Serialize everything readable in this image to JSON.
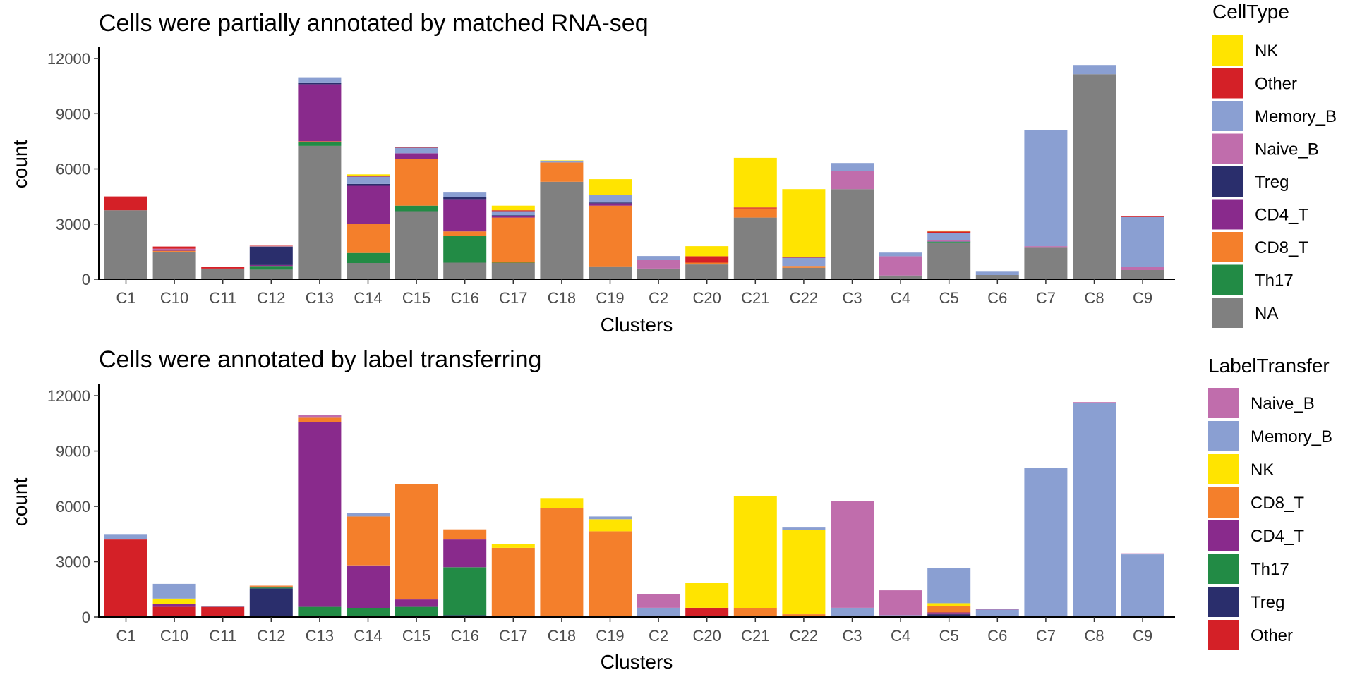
{
  "chart_data": [
    {
      "type": "bar",
      "stacked": true,
      "title": "Cells were partially annotated by matched RNA-seq",
      "xlabel": "Clusters",
      "ylabel": "count",
      "ylim": [
        0,
        12500
      ],
      "yticks": [
        0,
        3000,
        6000,
        9000,
        12000
      ],
      "grid": false,
      "legend_title": "CellType",
      "legend_position": "right",
      "categories": [
        "C1",
        "C10",
        "C11",
        "C12",
        "C13",
        "C14",
        "C15",
        "C16",
        "C17",
        "C18",
        "C19",
        "C2",
        "C20",
        "C21",
        "C22",
        "C3",
        "C4",
        "C5",
        "C6",
        "C7",
        "C8",
        "C9"
      ],
      "series": [
        {
          "name": "NA",
          "color": "#808080",
          "values": [
            3750,
            1500,
            580,
            520,
            7250,
            880,
            3700,
            900,
            880,
            5300,
            700,
            580,
            800,
            3350,
            620,
            4900,
            170,
            2000,
            230,
            1750,
            11150,
            500
          ]
        },
        {
          "name": "Th17",
          "color": "#228B45",
          "values": [
            0,
            0,
            0,
            200,
            200,
            550,
            300,
            1450,
            20,
            0,
            0,
            0,
            0,
            0,
            0,
            0,
            30,
            40,
            0,
            0,
            0,
            0
          ]
        },
        {
          "name": "CD8_T",
          "color": "#F47F2B",
          "values": [
            0,
            50,
            0,
            0,
            50,
            1600,
            2550,
            250,
            2450,
            1050,
            3300,
            0,
            100,
            500,
            100,
            0,
            0,
            0,
            0,
            0,
            0,
            0
          ]
        },
        {
          "name": "CD4_T",
          "color": "#892A8C",
          "values": [
            0,
            30,
            0,
            50,
            3100,
            2050,
            300,
            1750,
            80,
            0,
            120,
            0,
            0,
            0,
            0,
            0,
            0,
            0,
            0,
            0,
            0,
            0
          ]
        },
        {
          "name": "Treg",
          "color": "#2A2E6C",
          "values": [
            0,
            0,
            0,
            1000,
            100,
            100,
            0,
            100,
            50,
            0,
            50,
            0,
            0,
            0,
            0,
            0,
            0,
            20,
            0,
            0,
            0,
            0
          ]
        },
        {
          "name": "Naive_B",
          "color": "#C06DAC",
          "values": [
            0,
            80,
            0,
            0,
            0,
            0,
            0,
            0,
            0,
            0,
            0,
            480,
            0,
            0,
            0,
            970,
            1050,
            60,
            0,
            50,
            0,
            180
          ]
        },
        {
          "name": "Memory_B",
          "color": "#8A9FD2",
          "values": [
            0,
            0,
            0,
            20,
            280,
            400,
            300,
            300,
            220,
            100,
            400,
            200,
            0,
            0,
            450,
            450,
            200,
            400,
            220,
            6300,
            500,
            2700
          ]
        },
        {
          "name": "Other",
          "color": "#D42027",
          "values": [
            750,
            120,
            100,
            30,
            0,
            50,
            50,
            0,
            50,
            0,
            20,
            0,
            350,
            50,
            30,
            0,
            0,
            80,
            0,
            0,
            0,
            50
          ]
        },
        {
          "name": "NK",
          "color": "#FFE400",
          "values": [
            0,
            0,
            0,
            0,
            0,
            70,
            0,
            0,
            250,
            20,
            850,
            0,
            550,
            2700,
            3700,
            0,
            0,
            50,
            0,
            0,
            0,
            0
          ]
        }
      ],
      "legend_order": [
        "NK",
        "Other",
        "Memory_B",
        "Naive_B",
        "Treg",
        "CD4_T",
        "CD8_T",
        "Th17",
        "NA"
      ]
    },
    {
      "type": "bar",
      "stacked": true,
      "title": "Cells were annotated by label transferring",
      "xlabel": "Clusters",
      "ylabel": "count",
      "ylim": [
        0,
        12500
      ],
      "yticks": [
        0,
        3000,
        6000,
        9000,
        12000
      ],
      "grid": false,
      "legend_title": "LabelTransfer",
      "legend_position": "right",
      "categories": [
        "C1",
        "C10",
        "C11",
        "C12",
        "C13",
        "C14",
        "C15",
        "C16",
        "C17",
        "C18",
        "C19",
        "C2",
        "C20",
        "C21",
        "C22",
        "C3",
        "C4",
        "C5",
        "C6",
        "C7",
        "C8",
        "C9"
      ],
      "series": [
        {
          "name": "Treg",
          "color": "#2A2E6C",
          "values": [
            0,
            0,
            0,
            1550,
            0,
            0,
            0,
            100,
            50,
            0,
            50,
            0,
            0,
            0,
            0,
            0,
            0,
            150,
            0,
            0,
            0,
            0
          ]
        },
        {
          "name": "Th17",
          "color": "#228B45",
          "values": [
            0,
            0,
            0,
            50,
            550,
            500,
            550,
            2600,
            0,
            0,
            0,
            0,
            0,
            0,
            0,
            0,
            0,
            0,
            0,
            0,
            0,
            0
          ]
        },
        {
          "name": "Other",
          "color": "#D42027",
          "values": [
            4200,
            550,
            550,
            50,
            0,
            0,
            0,
            0,
            0,
            0,
            0,
            0,
            500,
            0,
            0,
            0,
            0,
            50,
            0,
            0,
            0,
            0
          ]
        },
        {
          "name": "CD4_T",
          "color": "#892A8C",
          "values": [
            0,
            150,
            0,
            0,
            10000,
            2300,
            400,
            1500,
            0,
            0,
            0,
            0,
            0,
            0,
            0,
            0,
            0,
            50,
            0,
            0,
            0,
            0
          ]
        },
        {
          "name": "CD8_T",
          "color": "#F47F2B",
          "values": [
            0,
            0,
            0,
            50,
            250,
            2650,
            6250,
            550,
            3700,
            5900,
            4600,
            0,
            0,
            500,
            150,
            0,
            0,
            350,
            0,
            0,
            0,
            0
          ]
        },
        {
          "name": "NK",
          "color": "#FFE400",
          "values": [
            0,
            300,
            0,
            0,
            0,
            0,
            0,
            0,
            200,
            550,
            650,
            0,
            1350,
            6050,
            4550,
            0,
            0,
            150,
            0,
            0,
            0,
            0
          ]
        },
        {
          "name": "Memory_B",
          "color": "#8A9FD2",
          "values": [
            300,
            800,
            50,
            0,
            0,
            200,
            0,
            0,
            0,
            0,
            150,
            500,
            0,
            20,
            150,
            500,
            100,
            1900,
            400,
            8100,
            11600,
            3400
          ]
        },
        {
          "name": "Naive_B",
          "color": "#C06DAC",
          "values": [
            0,
            0,
            0,
            0,
            150,
            0,
            0,
            0,
            0,
            0,
            0,
            750,
            0,
            0,
            0,
            5800,
            1350,
            0,
            50,
            0,
            50,
            50
          ]
        }
      ],
      "legend_order": [
        "Naive_B",
        "Memory_B",
        "NK",
        "CD8_T",
        "CD4_T",
        "Th17",
        "Treg",
        "Other"
      ]
    }
  ]
}
